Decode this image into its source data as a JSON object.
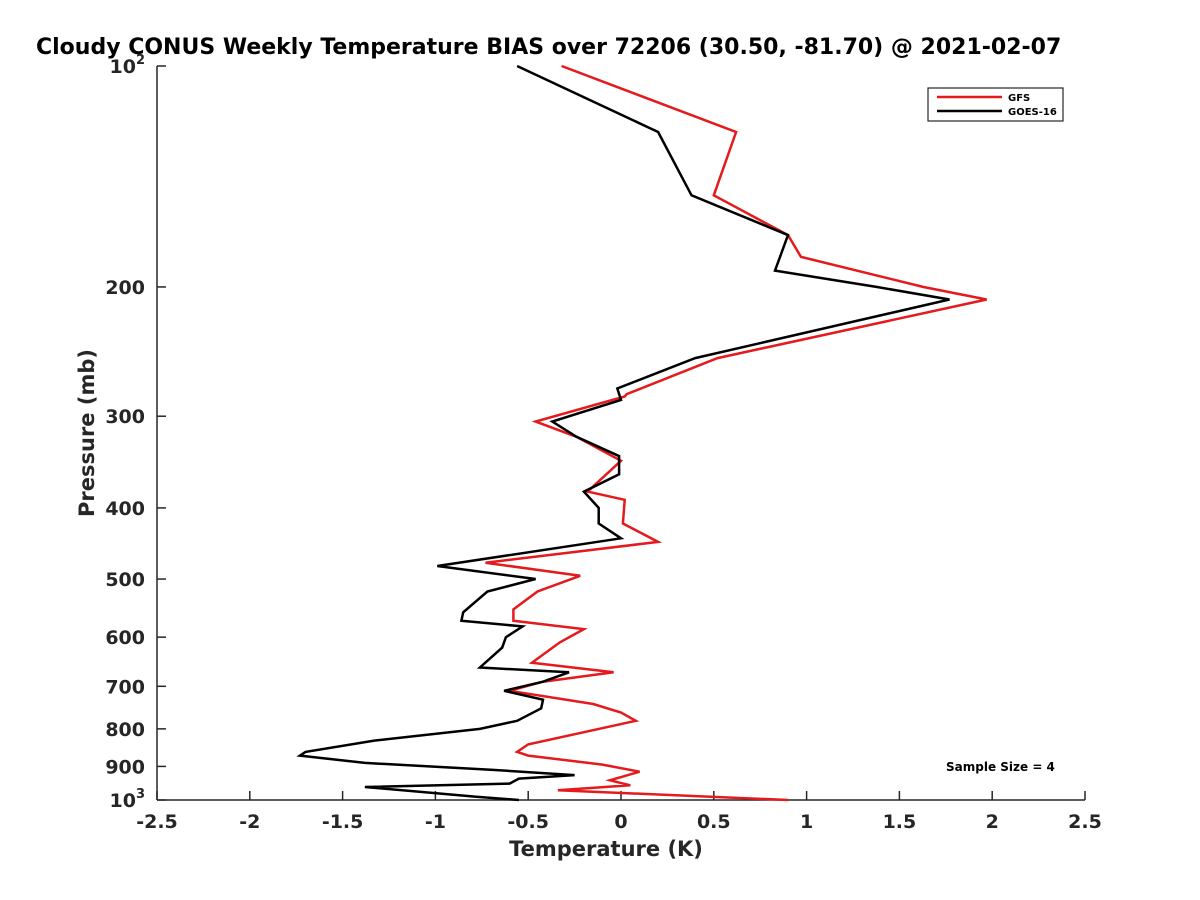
{
  "chart_data": {
    "type": "line",
    "title": "Cloudy CONUS Weekly Temperature BIAS over 72206 (30.50, -81.70) @ 2021-02-07",
    "xlabel": "Temperature (K)",
    "ylabel": "Pressure (mb)",
    "xlim": [
      -2.5,
      2.5
    ],
    "ylim": [
      100,
      1000
    ],
    "yscale": "log",
    "y_reversed": true,
    "grid": false,
    "legend_position": "top-right",
    "x_ticks": [
      "-2.5",
      "-2",
      "-1.5",
      "-1",
      "-0.5",
      "0",
      "0.5",
      "1",
      "1.5",
      "2",
      "2.5"
    ],
    "x_tick_values": [
      -2.5,
      -2,
      -1.5,
      -1,
      -0.5,
      0,
      0.5,
      1,
      1.5,
      2,
      2.5
    ],
    "y_ticks": [
      {
        "value": 100,
        "base": "10",
        "exp": "2"
      },
      {
        "value": 200,
        "label": "200"
      },
      {
        "value": 300,
        "label": "300"
      },
      {
        "value": 400,
        "label": "400"
      },
      {
        "value": 500,
        "label": "500"
      },
      {
        "value": 600,
        "label": "600"
      },
      {
        "value": 700,
        "label": "700"
      },
      {
        "value": 800,
        "label": "800"
      },
      {
        "value": 900,
        "label": "900"
      },
      {
        "value": 1000,
        "base": "10",
        "exp": "3"
      }
    ],
    "annotation": "Sample Size = 4",
    "series": [
      {
        "name": "GFS",
        "color": "#e41a1c",
        "points": [
          [
            -0.32,
            100
          ],
          [
            0.62,
            123
          ],
          [
            0.5,
            150
          ],
          [
            0.9,
            170
          ],
          [
            0.97,
            182
          ],
          [
            1.63,
            200
          ],
          [
            1.97,
            208
          ],
          [
            0.52,
            250
          ],
          [
            0.03,
            280
          ],
          [
            0.02,
            282
          ],
          [
            -0.46,
            305
          ],
          [
            -0.24,
            320
          ],
          [
            0.0,
            345
          ],
          [
            -0.18,
            380
          ],
          [
            0.02,
            390
          ],
          [
            0.01,
            420
          ],
          [
            0.2,
            445
          ],
          [
            -0.73,
            475
          ],
          [
            -0.22,
            495
          ],
          [
            -0.45,
            520
          ],
          [
            -0.58,
            550
          ],
          [
            -0.58,
            570
          ],
          [
            -0.2,
            585
          ],
          [
            -0.33,
            610
          ],
          [
            -0.48,
            650
          ],
          [
            -0.04,
            670
          ],
          [
            -0.42,
            690
          ],
          [
            -0.6,
            710
          ],
          [
            -0.15,
            740
          ],
          [
            0.0,
            760
          ],
          [
            0.08,
            780
          ],
          [
            -0.5,
            840
          ],
          [
            -0.56,
            860
          ],
          [
            -0.5,
            870
          ],
          [
            -0.1,
            895
          ],
          [
            0.1,
            915
          ],
          [
            -0.06,
            940
          ],
          [
            0.05,
            955
          ],
          [
            -0.34,
            970
          ],
          [
            0.9,
            1000
          ]
        ]
      },
      {
        "name": "GOES-16",
        "color": "#000000",
        "points": [
          [
            -0.56,
            100
          ],
          [
            0.2,
            123
          ],
          [
            0.38,
            150
          ],
          [
            0.9,
            170
          ],
          [
            0.83,
            190
          ],
          [
            1.38,
            200
          ],
          [
            1.77,
            208
          ],
          [
            0.4,
            250
          ],
          [
            -0.02,
            275
          ],
          [
            0.0,
            285
          ],
          [
            -0.37,
            305
          ],
          [
            -0.24,
            320
          ],
          [
            -0.01,
            340
          ],
          [
            -0.01,
            360
          ],
          [
            -0.2,
            380
          ],
          [
            -0.12,
            400
          ],
          [
            -0.12,
            420
          ],
          [
            0.0,
            440
          ],
          [
            -0.99,
            480
          ],
          [
            -0.46,
            500
          ],
          [
            -0.72,
            520
          ],
          [
            -0.85,
            555
          ],
          [
            -0.86,
            570
          ],
          [
            -0.53,
            580
          ],
          [
            -0.62,
            600
          ],
          [
            -0.64,
            620
          ],
          [
            -0.76,
            660
          ],
          [
            -0.28,
            670
          ],
          [
            -0.42,
            690
          ],
          [
            -0.63,
            710
          ],
          [
            -0.42,
            730
          ],
          [
            -0.43,
            750
          ],
          [
            -0.56,
            780
          ],
          [
            -0.76,
            800
          ],
          [
            -1.33,
            830
          ],
          [
            -1.7,
            860
          ],
          [
            -1.73,
            870
          ],
          [
            -1.38,
            890
          ],
          [
            -0.69,
            910
          ],
          [
            -0.25,
            925
          ],
          [
            -0.55,
            935
          ],
          [
            -0.6,
            950
          ],
          [
            -1.38,
            960
          ],
          [
            -0.78,
            990
          ],
          [
            -0.55,
            1000
          ]
        ]
      }
    ]
  }
}
